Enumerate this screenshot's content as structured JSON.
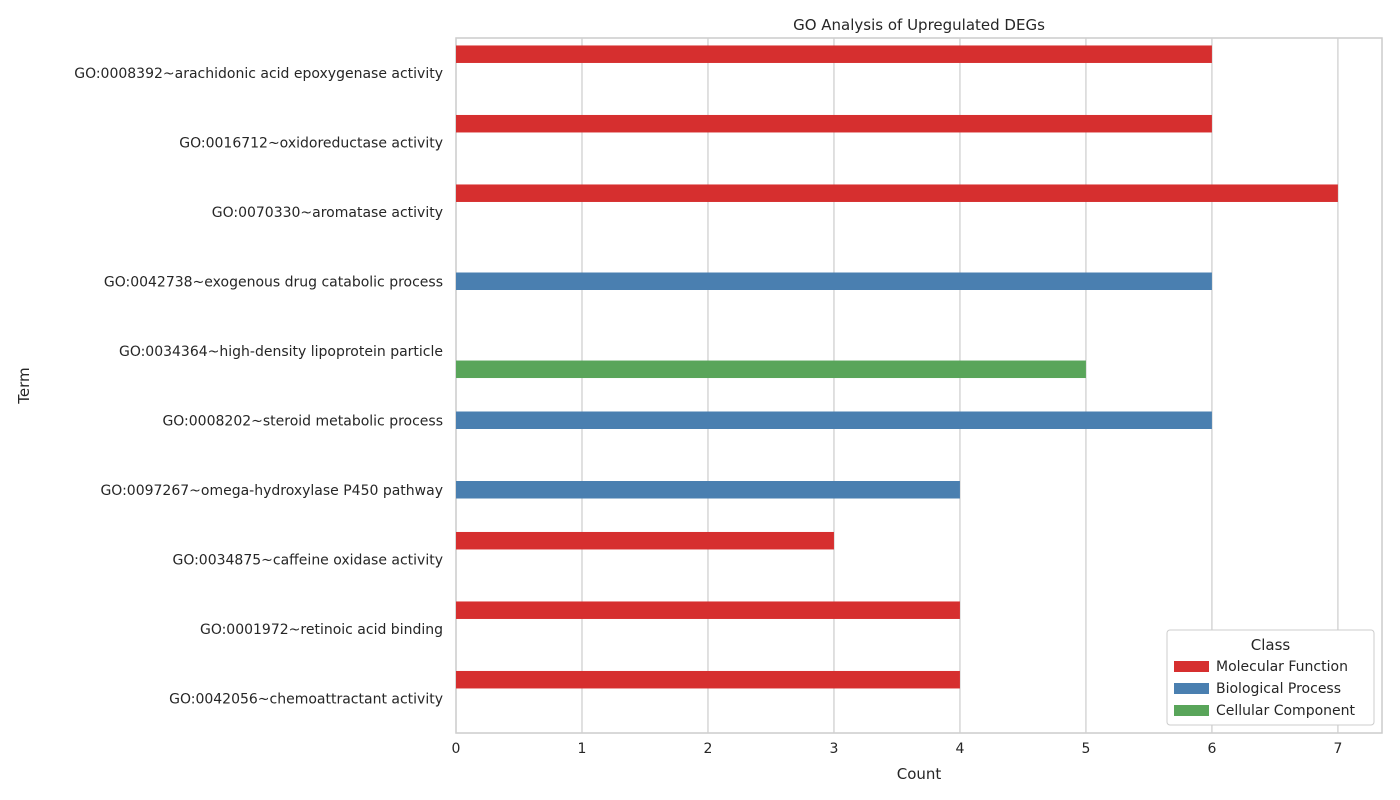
{
  "chart_data": {
    "type": "bar",
    "orientation": "horizontal",
    "title": "GO Analysis of Upregulated DEGs",
    "xlabel": "Count",
    "ylabel": "Term",
    "xlim": [
      0,
      7.35
    ],
    "xticks": [
      0,
      1,
      2,
      3,
      4,
      5,
      6,
      7
    ],
    "grid": "vertical",
    "legend": {
      "title": "Class",
      "placement": "lower-right"
    },
    "categories": [
      "GO:0008392~arachidonic acid epoxygenase activity",
      "GO:0016712~oxidoreductase activity",
      "GO:0070330~aromatase activity",
      "GO:0042738~exogenous drug catabolic process",
      "GO:0034364~high-density lipoprotein particle",
      "GO:0008202~steroid metabolic process",
      "GO:0097267~omega-hydroxylase P450 pathway",
      "GO:0034875~caffeine oxidase activity",
      "GO:0001972~retinoic acid binding",
      "GO:0042056~chemoattractant activity"
    ],
    "series": [
      {
        "name": "Molecular Function",
        "color": "#d62f2f",
        "values": [
          6,
          6,
          7,
          null,
          null,
          null,
          null,
          3,
          4,
          4
        ]
      },
      {
        "name": "Biological Process",
        "color": "#4a7fb0",
        "values": [
          null,
          null,
          null,
          6,
          null,
          6,
          4,
          null,
          null,
          null
        ]
      },
      {
        "name": "Cellular Component",
        "color": "#59a55a",
        "values": [
          null,
          null,
          null,
          null,
          5,
          null,
          null,
          null,
          null,
          null
        ]
      }
    ]
  }
}
